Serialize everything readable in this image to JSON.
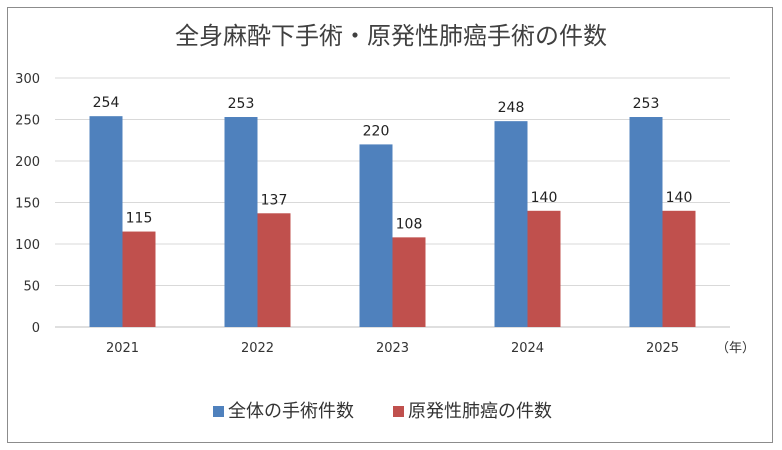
{
  "chart_data": {
    "type": "bar",
    "title": "全身麻酔下手術・原発性肺癌手術の件数",
    "categories": [
      "2021",
      "2022",
      "2023",
      "2024",
      "2025"
    ],
    "series": [
      {
        "name": "全体の手術件数",
        "values": [
          254,
          253,
          220,
          248,
          253
        ],
        "color": "#4f81bd"
      },
      {
        "name": "原発性肺癌の件数",
        "values": [
          115,
          137,
          108,
          140,
          140
        ],
        "color": "#c0504d"
      }
    ],
    "x_unit": "（年）",
    "ylim": [
      0,
      300
    ],
    "yticks": [
      0,
      50,
      100,
      150,
      200,
      250,
      300
    ],
    "grid": true,
    "legend_position": "bottom",
    "data_labels": true
  }
}
